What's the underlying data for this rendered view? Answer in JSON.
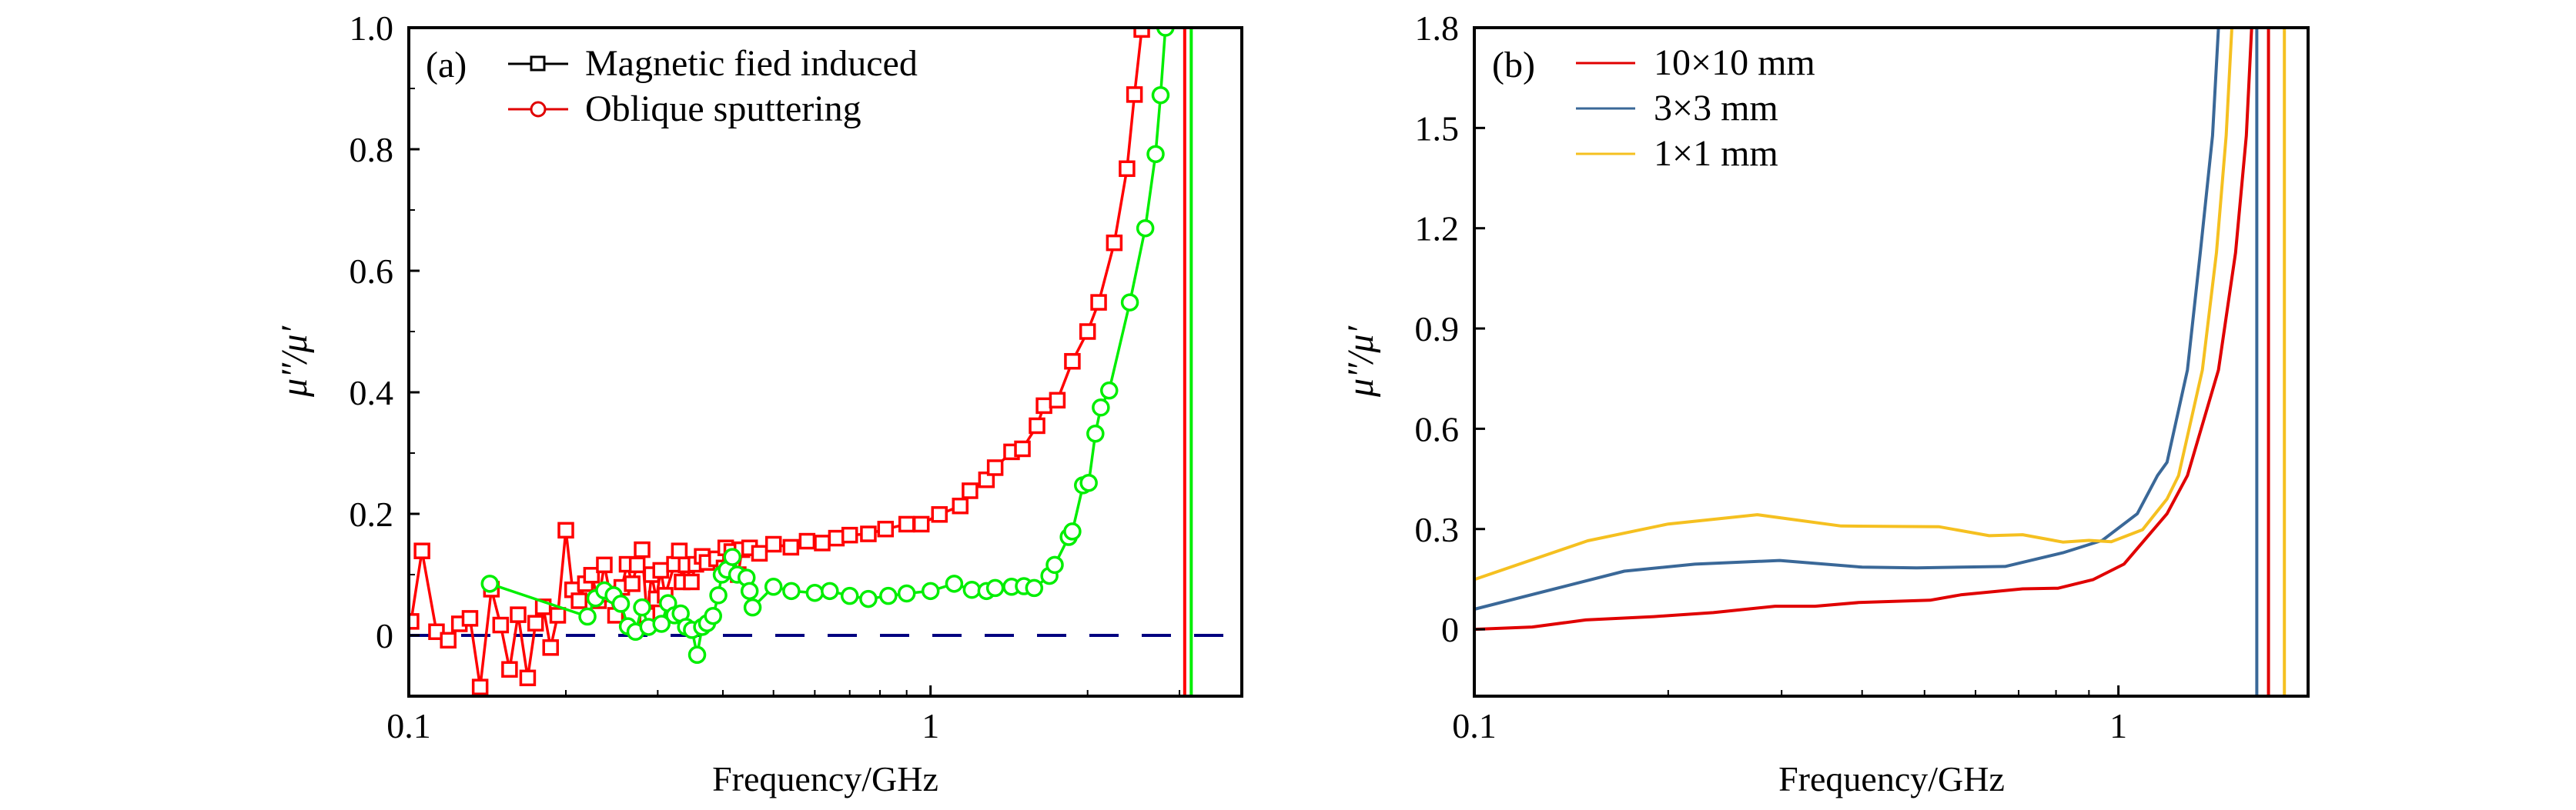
{
  "figure": {
    "panels_count": 2
  },
  "chart_data": [
    {
      "type": "scatter",
      "panel_label": "(a)",
      "title": "",
      "xlabel": "Frequency/GHz",
      "ylabel": "μ″/μ′",
      "xscale": "log",
      "xlim": [
        0.1,
        3.95
      ],
      "ylim": [
        -0.1,
        1.0
      ],
      "x_ticks": [
        0.1,
        1
      ],
      "x_tick_labels": [
        "0.1",
        "1"
      ],
      "x_minor_ticks": [
        0.2,
        0.3,
        0.4,
        0.5,
        0.6,
        0.7,
        0.8,
        0.9,
        2,
        3
      ],
      "y_ticks": [
        0,
        0.2,
        0.4,
        0.6,
        0.8,
        1.0
      ],
      "y_tick_labels": [
        "0",
        "0.2",
        "0.4",
        "0.6",
        "0.8",
        "1.0"
      ],
      "y_minor_ticks": [
        0.1,
        0.3,
        0.5,
        0.7,
        0.9
      ],
      "grid": false,
      "legend_position": "top-left",
      "legend": [
        {
          "label": "Magnetic fied induced",
          "marker": "square",
          "color": "#000000"
        },
        {
          "label": "Oblique sputtering",
          "marker": "circle",
          "color": "#e00000"
        }
      ],
      "series": [
        {
          "name": "Magnetic fied induced",
          "plot_color": "#ff0000",
          "marker": "square",
          "x": [
            0.101,
            0.106,
            0.113,
            0.119,
            0.125,
            0.131,
            0.137,
            0.144,
            0.15,
            0.156,
            0.162,
            0.169,
            0.175,
            0.181,
            0.187,
            0.193,
            0.2,
            0.206,
            0.212,
            0.218,
            0.224,
            0.231,
            0.237,
            0.243,
            0.249,
            0.256,
            0.262,
            0.268,
            0.274,
            0.28,
            0.286,
            0.292,
            0.298,
            0.304,
            0.31,
            0.323,
            0.33,
            0.334,
            0.34,
            0.348,
            0.355,
            0.365,
            0.373,
            0.389,
            0.402,
            0.405,
            0.416,
            0.428,
            0.435,
            0.45,
            0.47,
            0.5,
            0.54,
            0.58,
            0.62,
            0.66,
            0.7,
            0.76,
            0.82,
            0.9,
            0.96,
            1.04,
            1.14,
            1.19,
            1.28,
            1.33,
            1.43,
            1.5,
            1.6,
            1.65,
            1.75,
            1.87,
            2.0,
            2.1,
            2.25,
            2.38,
            2.46,
            2.54
          ],
          "y": [
            0.023,
            0.139,
            0.006,
            -0.008,
            0.019,
            0.028,
            -0.085,
            0.076,
            0.017,
            -0.056,
            0.034,
            -0.07,
            0.02,
            0.047,
            -0.02,
            0.033,
            0.173,
            0.075,
            0.057,
            0.085,
            0.099,
            0.057,
            0.116,
            0.068,
            0.033,
            0.079,
            0.117,
            0.085,
            0.116,
            0.141,
            0.033,
            0.1,
            0.06,
            0.107,
            0.066,
            0.117,
            0.139,
            0.088,
            0.116,
            0.088,
            0.117,
            0.13,
            0.12,
            0.126,
            0.111,
            0.144,
            0.138,
            0.1,
            0.141,
            0.144,
            0.135,
            0.15,
            0.145,
            0.155,
            0.152,
            0.16,
            0.165,
            0.167,
            0.175,
            0.183,
            0.183,
            0.199,
            0.213,
            0.238,
            0.256,
            0.276,
            0.302,
            0.307,
            0.345,
            0.378,
            0.387,
            0.451,
            0.5,
            0.548,
            0.646,
            0.768,
            0.89,
            0.997
          ]
        },
        {
          "name": "Oblique sputtering",
          "plot_color": "#00ee00",
          "marker": "circle",
          "x": [
            0.143,
            0.22,
            0.228,
            0.237,
            0.247,
            0.255,
            0.263,
            0.272,
            0.28,
            0.288,
            0.305,
            0.314,
            0.323,
            0.332,
            0.34,
            0.349,
            0.357,
            0.365,
            0.373,
            0.383,
            0.392,
            0.398,
            0.407,
            0.417,
            0.426,
            0.444,
            0.45,
            0.456,
            0.5,
            0.541,
            0.6,
            0.641,
            0.7,
            0.76,
            0.83,
            0.9,
            1.0,
            1.11,
            1.2,
            1.28,
            1.33,
            1.43,
            1.51,
            1.58,
            1.69,
            1.73,
            1.84,
            1.87,
            1.96,
            2.01,
            2.07,
            2.12,
            2.2,
            2.41,
            2.58,
            2.7,
            2.76,
            2.82
          ],
          "y": [
            0.085,
            0.031,
            0.061,
            0.074,
            0.066,
            0.052,
            0.015,
            0.006,
            0.046,
            0.014,
            0.019,
            0.053,
            0.033,
            0.036,
            0.014,
            0.009,
            -0.032,
            0.014,
            0.02,
            0.032,
            0.066,
            0.1,
            0.108,
            0.129,
            0.1,
            0.095,
            0.073,
            0.046,
            0.08,
            0.073,
            0.07,
            0.073,
            0.065,
            0.06,
            0.065,
            0.069,
            0.073,
            0.085,
            0.075,
            0.073,
            0.078,
            0.08,
            0.081,
            0.078,
            0.098,
            0.116,
            0.162,
            0.171,
            0.247,
            0.251,
            0.332,
            0.375,
            0.403,
            0.548,
            0.67,
            0.792,
            0.889,
            1.0
          ]
        }
      ],
      "reference_lines": [
        {
          "orientation": "horizontal",
          "y": 0,
          "style": "dashed",
          "color": "#000080"
        },
        {
          "orientation": "vertical",
          "x": 3.07,
          "style": "solid",
          "color": "#ff0000"
        },
        {
          "orientation": "vertical",
          "x": 3.16,
          "style": "solid",
          "color": "#00ee00"
        }
      ]
    },
    {
      "type": "line",
      "panel_label": "(b)",
      "title": "",
      "xlabel": "Frequency/GHz",
      "ylabel": "μ″/μ′",
      "xscale": "log",
      "xlim": [
        0.1,
        1.97
      ],
      "ylim": [
        -0.2,
        1.8
      ],
      "x_ticks": [
        0.1,
        1
      ],
      "x_tick_labels": [
        "0.1",
        "1"
      ],
      "x_minor_ticks": [
        0.2,
        0.3,
        0.4,
        0.5,
        0.6,
        0.7,
        0.8,
        0.9
      ],
      "y_ticks": [
        0,
        0.3,
        0.6,
        0.9,
        1.2,
        1.5,
        1.8
      ],
      "y_tick_labels": [
        "0",
        "0.3",
        "0.6",
        "0.9",
        "1.2",
        "1.5",
        "1.8"
      ],
      "grid": false,
      "legend_position": "top-left",
      "legend": [
        {
          "label": "10×10 mm",
          "color": "#e00000"
        },
        {
          "label": "3×3 mm",
          "color": "#3a6898"
        },
        {
          "label": "1×1 mm",
          "color": "#f5c020"
        }
      ],
      "series": [
        {
          "name": "10×10 mm",
          "color": "#e00000",
          "x": [
            0.1,
            0.123,
            0.149,
            0.19,
            0.235,
            0.293,
            0.338,
            0.395,
            0.51,
            0.569,
            0.71,
            0.806,
            0.914,
            1.02,
            1.19,
            1.28,
            1.43,
            1.52,
            1.58,
            1.61
          ],
          "y": [
            0.0,
            0.007,
            0.028,
            0.038,
            0.05,
            0.069,
            0.069,
            0.08,
            0.087,
            0.103,
            0.121,
            0.123,
            0.149,
            0.195,
            0.346,
            0.46,
            0.776,
            1.127,
            1.477,
            1.8
          ]
        },
        {
          "name": "3×3 mm",
          "color": "#3a6898",
          "x": [
            0.1,
            0.171,
            0.22,
            0.298,
            0.4,
            0.486,
            0.667,
            0.82,
            0.944,
            1.07,
            1.15,
            1.19,
            1.28,
            1.34,
            1.4,
            1.43
          ],
          "y": [
            0.06,
            0.174,
            0.195,
            0.206,
            0.186,
            0.184,
            0.188,
            0.229,
            0.266,
            0.346,
            0.46,
            0.5,
            0.776,
            1.127,
            1.477,
            1.8
          ]
        },
        {
          "name": "1×1 mm",
          "color": "#f5c020",
          "x": [
            0.1,
            0.15,
            0.2,
            0.275,
            0.371,
            0.526,
            0.63,
            0.71,
            0.82,
            0.9,
            0.975,
            1.09,
            1.19,
            1.24,
            1.35,
            1.42,
            1.47,
            1.5
          ],
          "y": [
            0.149,
            0.265,
            0.315,
            0.343,
            0.309,
            0.307,
            0.28,
            0.283,
            0.261,
            0.266,
            0.262,
            0.298,
            0.39,
            0.46,
            0.776,
            1.127,
            1.477,
            1.8
          ]
        }
      ],
      "reference_lines": [
        {
          "orientation": "vertical",
          "x": 1.64,
          "style": "solid",
          "color": "#3a6898"
        },
        {
          "orientation": "vertical",
          "x": 1.71,
          "style": "solid",
          "color": "#e00000"
        },
        {
          "orientation": "vertical",
          "x": 1.81,
          "style": "solid",
          "color": "#f5c020"
        }
      ]
    }
  ]
}
